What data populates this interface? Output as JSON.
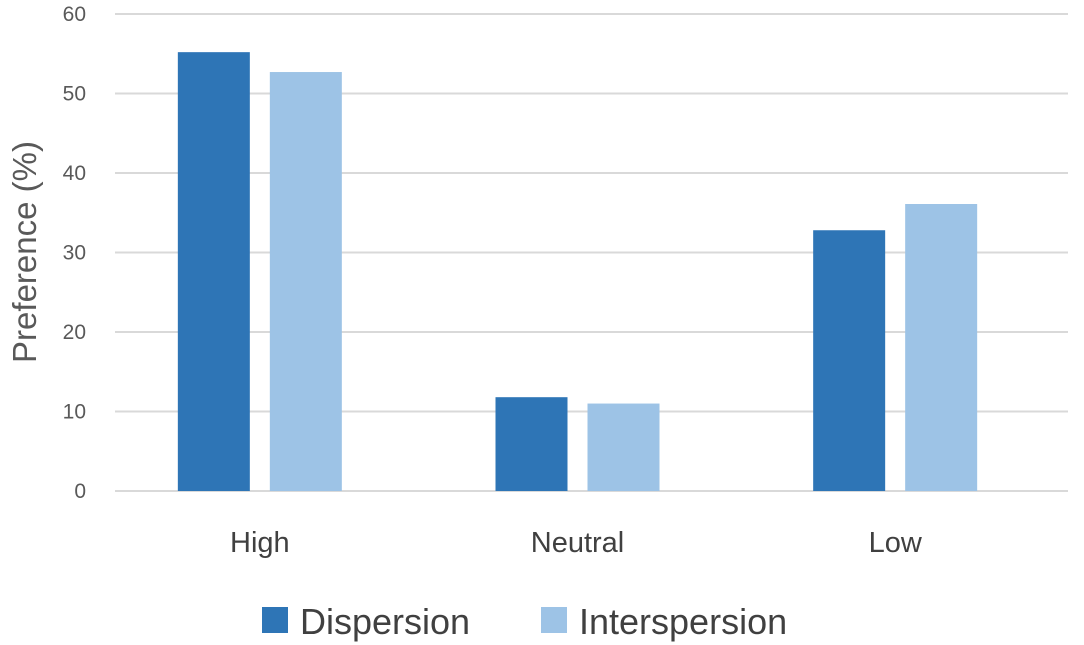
{
  "chart_data": {
    "type": "bar",
    "title": "",
    "xlabel": "",
    "ylabel": "Preference (%)",
    "categories": [
      "High",
      "Neutral",
      "Low"
    ],
    "series": [
      {
        "name": "Dispersion",
        "values": [
          55.2,
          11.8,
          32.8
        ],
        "color": "#2e75b6"
      },
      {
        "name": "Interspersion",
        "values": [
          52.7,
          11.0,
          36.1
        ],
        "color": "#9dc3e6"
      }
    ],
    "ylim": [
      0,
      60
    ],
    "yticks": [
      0,
      10,
      20,
      30,
      40,
      50,
      60
    ],
    "grid": true,
    "legend_position": "bottom"
  }
}
